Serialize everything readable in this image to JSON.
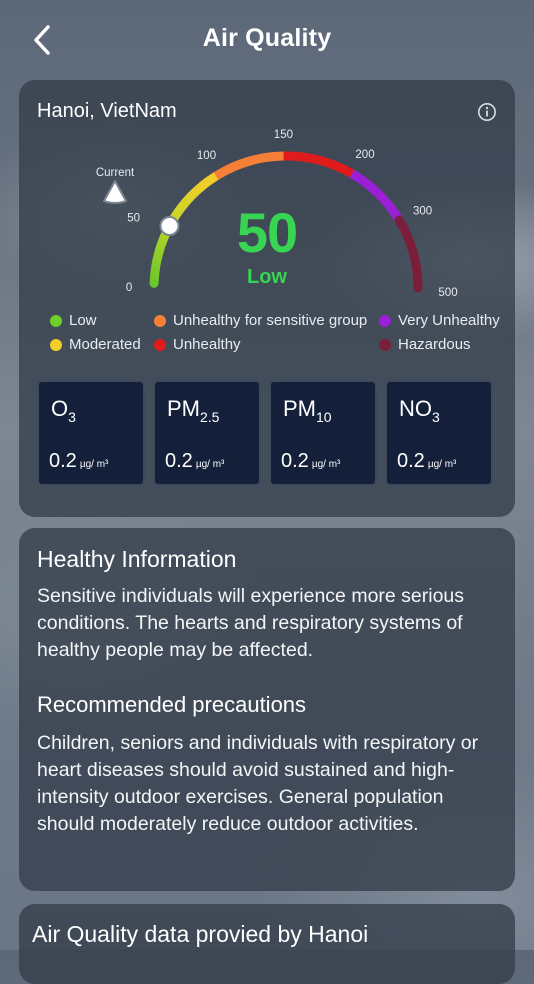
{
  "header": {
    "title": "Air Quality",
    "back_icon": "chevron-left-icon"
  },
  "aq": {
    "location": "Hanoi, VietNam",
    "info_icon": "info-circle-icon",
    "aqi_value": 50,
    "aqi_value_text": "50",
    "aqi_label": "Low",
    "aqi_color": "#37d552",
    "current_label": "Current",
    "scale": {
      "min": 0,
      "max": 500,
      "ticks": [
        {
          "value": 0,
          "label": "0"
        },
        {
          "value": 50,
          "label": "50"
        },
        {
          "value": 100,
          "label": "100"
        },
        {
          "value": 150,
          "label": "150"
        },
        {
          "value": 200,
          "label": "200"
        },
        {
          "value": 300,
          "label": "300"
        },
        {
          "value": 500,
          "label": "500"
        }
      ]
    },
    "legend": [
      {
        "label": "Low",
        "color": "#6ccf2a"
      },
      {
        "label": "Moderated",
        "color": "#f4cd2a"
      },
      {
        "label": "Unhealthy for sensitive group",
        "color": "#f57f36"
      },
      {
        "label": "Unhealthy",
        "color": "#e01b1b"
      },
      {
        "label": "Very Unhealthy",
        "color": "#9b1fd6"
      },
      {
        "label": "Hazardous",
        "color": "#7a1e3c"
      }
    ],
    "pollutants": [
      {
        "name": "O",
        "sub": "3",
        "value": "0.2",
        "unit": "µg/ m³"
      },
      {
        "name": "PM",
        "sub": "2.5",
        "value": "0.2",
        "unit": "µg/ m³"
      },
      {
        "name": "PM",
        "sub": "10",
        "value": "0.2",
        "unit": "µg/ m³"
      },
      {
        "name": "NO",
        "sub": "3",
        "value": "0.2",
        "unit": "µg/ m³"
      }
    ]
  },
  "health": {
    "title": "Healthy Information",
    "text": "Sensitive individuals will experience more serious conditions. The hearts and respiratory systems of healthy people may be affected.",
    "precautions_title": "Recommended precautions",
    "precautions_text": "Children, seniors and individuals with respiratory or heart diseases should avoid sustained and high-intensity outdoor exercises. General population should moderately reduce outdoor activities."
  },
  "data_source": {
    "title": "Air Quality data provied by Hanoi"
  }
}
